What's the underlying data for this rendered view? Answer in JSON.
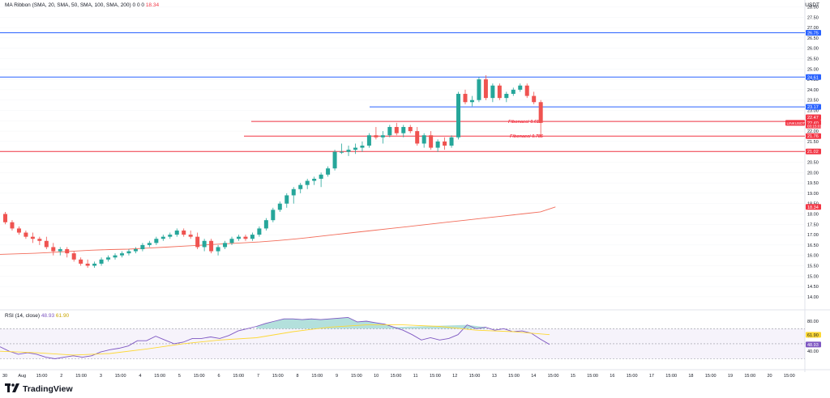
{
  "header": {
    "ma_ribbon_label": "MA Ribbon (SMA, 20, SMA, 50, SMA, 100, SMA, 200)",
    "ma_ribbon_values": "0  0  0",
    "ma_ribbon_last": "18.34",
    "currency": "USDT"
  },
  "rsi_header": {
    "label": "RSI (14, close)",
    "rsi_value": "48.93",
    "ma_value": "61.90"
  },
  "brand": {
    "name": "TradingView"
  },
  "colors": {
    "bull": "#26a69a",
    "bear": "#ef5350",
    "blue_line": "#2962ff",
    "red_line": "#f23645",
    "ma200": "#f26d5b",
    "rsi_line": "#7e57c2",
    "rsi_ma": "#fdd835"
  },
  "chart_data": {
    "type": "candlestick",
    "symbol_tag": "LINKUSDT",
    "price_axis_labels": [
      "28.00",
      "27.50",
      "27.00",
      "26.50",
      "26.00",
      "25.50",
      "25.00",
      "24.50",
      "24.00",
      "23.50",
      "23.00",
      "22.50",
      "22.00",
      "21.50",
      "21.00",
      "20.50",
      "20.00",
      "19.50",
      "19.00",
      "18.50",
      "18.00",
      "17.50",
      "17.00",
      "16.50",
      "16.00",
      "15.50",
      "15.00",
      "14.50",
      "14.00"
    ],
    "x_axis_labels": [
      "30",
      "Aug",
      "15:00",
      "2",
      "15:00",
      "3",
      "15:00",
      "4",
      "15:00",
      "5",
      "15:00",
      "6",
      "15:00",
      "7",
      "15:00",
      "8",
      "15:00",
      "9",
      "15:00",
      "10",
      "15:00",
      "11",
      "15:00",
      "12",
      "15:00",
      "13",
      "15:00",
      "14",
      "15:00",
      "15",
      "15:00",
      "16",
      "15:00",
      "17",
      "15:00",
      "18",
      "15:00",
      "19",
      "15:00",
      "20",
      "15:00"
    ],
    "horizontal_levels": [
      {
        "price": 26.75,
        "label": "26.75",
        "color": "blue"
      },
      {
        "price": 24.61,
        "label": "24.61",
        "color": "blue"
      },
      {
        "price": 23.17,
        "label": "23.17",
        "color": "blue"
      },
      {
        "price": 22.47,
        "label": "Fibonacci 0.618",
        "color": "red"
      },
      {
        "price": 21.76,
        "label": "Fibonacci 0.786",
        "color": "red"
      },
      {
        "price": 21.02,
        "label": "21.02",
        "color": "red"
      }
    ],
    "price_tags": [
      {
        "price": 26.75,
        "label": "26.75",
        "kind": "blue"
      },
      {
        "price": 24.61,
        "label": "24.61",
        "kind": "blue"
      },
      {
        "price": 23.17,
        "label": "23.17",
        "kind": "blue"
      },
      {
        "price": 22.67,
        "label": "22.47",
        "kind": "red"
      },
      {
        "price": 22.4,
        "label": "22.40",
        "kind": "red"
      },
      {
        "price": 22.25,
        "label": "03:15:01",
        "kind": "red_small"
      },
      {
        "price": 21.76,
        "label": "21.76",
        "kind": "red"
      },
      {
        "price": 21.02,
        "label": "21.02",
        "kind": "red"
      },
      {
        "price": 18.34,
        "label": "18.34",
        "kind": "red"
      }
    ],
    "candles": [
      [
        18.0,
        18.1,
        17.5,
        17.6
      ],
      [
        17.6,
        17.7,
        17.2,
        17.3
      ],
      [
        17.3,
        17.4,
        17.0,
        17.1
      ],
      [
        17.1,
        17.2,
        16.8,
        16.9
      ],
      [
        16.9,
        17.1,
        16.6,
        16.8
      ],
      [
        16.8,
        16.9,
        16.5,
        16.7
      ],
      [
        16.7,
        16.9,
        16.3,
        16.4
      ],
      [
        16.4,
        16.6,
        16.0,
        16.2
      ],
      [
        16.2,
        16.4,
        16.0,
        16.3
      ],
      [
        16.3,
        16.4,
        15.9,
        16.1
      ],
      [
        16.1,
        16.2,
        15.7,
        15.8
      ],
      [
        15.8,
        15.9,
        15.5,
        15.6
      ],
      [
        15.6,
        15.8,
        15.4,
        15.5
      ],
      [
        15.5,
        15.7,
        15.4,
        15.6
      ],
      [
        15.6,
        15.9,
        15.5,
        15.8
      ],
      [
        15.8,
        16.0,
        15.7,
        15.9
      ],
      [
        15.9,
        16.1,
        15.8,
        16.0
      ],
      [
        16.0,
        16.2,
        15.9,
        16.1
      ],
      [
        16.1,
        16.3,
        16.0,
        16.2
      ],
      [
        16.2,
        16.4,
        16.1,
        16.3
      ],
      [
        16.3,
        16.6,
        16.2,
        16.5
      ],
      [
        16.5,
        16.7,
        16.4,
        16.6
      ],
      [
        16.6,
        16.9,
        16.5,
        16.8
      ],
      [
        16.8,
        17.0,
        16.7,
        16.9
      ],
      [
        16.9,
        17.1,
        16.8,
        17.0
      ],
      [
        17.0,
        17.3,
        16.9,
        17.2
      ],
      [
        17.2,
        17.3,
        16.9,
        17.0
      ],
      [
        17.0,
        17.2,
        16.8,
        16.9
      ],
      [
        16.9,
        17.1,
        16.3,
        16.4
      ],
      [
        16.4,
        16.8,
        16.2,
        16.7
      ],
      [
        16.7,
        16.8,
        16.1,
        16.2
      ],
      [
        16.2,
        16.5,
        16.0,
        16.4
      ],
      [
        16.4,
        16.7,
        16.3,
        16.6
      ],
      [
        16.6,
        16.9,
        16.5,
        16.8
      ],
      [
        16.8,
        17.0,
        16.7,
        16.9
      ],
      [
        16.9,
        17.0,
        16.7,
        16.8
      ],
      [
        16.8,
        17.1,
        16.7,
        17.0
      ],
      [
        17.0,
        17.4,
        16.9,
        17.3
      ],
      [
        17.3,
        17.8,
        17.2,
        17.7
      ],
      [
        17.7,
        18.3,
        17.6,
        18.2
      ],
      [
        18.2,
        18.6,
        18.1,
        18.5
      ],
      [
        18.5,
        19.0,
        18.3,
        18.9
      ],
      [
        18.9,
        19.3,
        18.5,
        19.2
      ],
      [
        19.2,
        19.5,
        19.0,
        19.4
      ],
      [
        19.4,
        19.7,
        19.2,
        19.6
      ],
      [
        19.6,
        19.8,
        19.4,
        19.7
      ],
      [
        19.7,
        20.0,
        19.3,
        19.9
      ],
      [
        19.9,
        20.3,
        19.8,
        20.2
      ],
      [
        20.2,
        21.1,
        20.1,
        21.0
      ],
      [
        21.0,
        21.4,
        20.9,
        21.0
      ],
      [
        21.0,
        21.3,
        20.8,
        21.1
      ],
      [
        21.1,
        21.4,
        20.9,
        21.2
      ],
      [
        21.2,
        21.5,
        21.0,
        21.3
      ],
      [
        21.3,
        21.9,
        21.2,
        21.8
      ],
      [
        21.8,
        22.2,
        21.6,
        21.7
      ],
      [
        21.7,
        22.0,
        21.4,
        21.8
      ],
      [
        21.8,
        22.3,
        21.7,
        22.2
      ],
      [
        22.2,
        22.4,
        21.8,
        21.9
      ],
      [
        21.9,
        22.3,
        21.7,
        22.2
      ],
      [
        22.2,
        22.3,
        21.9,
        22.0
      ],
      [
        22.0,
        22.2,
        21.3,
        21.4
      ],
      [
        21.4,
        21.9,
        21.2,
        21.8
      ],
      [
        21.8,
        22.0,
        21.1,
        21.2
      ],
      [
        21.2,
        21.6,
        21.0,
        21.5
      ],
      [
        21.5,
        21.7,
        21.1,
        21.3
      ],
      [
        21.3,
        21.8,
        21.2,
        21.7
      ],
      [
        21.7,
        23.9,
        21.6,
        23.8
      ],
      [
        23.8,
        24.0,
        23.3,
        23.4
      ],
      [
        23.4,
        23.7,
        23.2,
        23.5
      ],
      [
        23.5,
        24.6,
        23.4,
        24.5
      ],
      [
        24.5,
        24.7,
        23.5,
        23.6
      ],
      [
        23.6,
        24.3,
        23.4,
        24.2
      ],
      [
        24.2,
        24.3,
        23.5,
        23.6
      ],
      [
        23.6,
        23.9,
        23.4,
        23.8
      ],
      [
        23.8,
        24.1,
        23.7,
        24.0
      ],
      [
        24.0,
        24.3,
        23.9,
        24.2
      ],
      [
        24.2,
        24.3,
        23.6,
        23.7
      ],
      [
        23.7,
        23.9,
        23.3,
        23.4
      ],
      [
        23.4,
        23.5,
        21.7,
        22.4
      ]
    ],
    "ma200": [
      [
        0,
        16.05
      ],
      [
        1,
        16.1
      ],
      [
        2,
        16.15
      ],
      [
        3,
        16.2
      ],
      [
        4,
        16.25
      ],
      [
        5,
        16.28
      ],
      [
        6,
        16.3
      ],
      [
        7,
        16.35
      ],
      [
        8,
        16.4
      ],
      [
        9,
        16.45
      ],
      [
        10,
        16.5
      ],
      [
        11,
        16.55
      ],
      [
        12,
        16.6
      ],
      [
        13,
        16.65
      ],
      [
        14,
        16.72
      ],
      [
        15,
        16.8
      ],
      [
        16,
        16.9
      ],
      [
        17,
        17.0
      ],
      [
        18,
        17.1
      ],
      [
        19,
        17.2
      ],
      [
        20,
        17.3
      ],
      [
        21,
        17.4
      ],
      [
        22,
        17.5
      ],
      [
        23,
        17.6
      ],
      [
        24,
        17.7
      ],
      [
        25,
        17.8
      ],
      [
        26,
        17.9
      ],
      [
        27,
        18.0
      ],
      [
        28,
        18.1
      ],
      [
        28.8,
        18.34
      ]
    ],
    "rsi": [
      [
        0,
        46
      ],
      [
        1,
        40
      ],
      [
        2,
        36
      ],
      [
        3,
        38
      ],
      [
        4,
        36
      ],
      [
        5,
        32
      ],
      [
        6,
        30
      ],
      [
        7,
        32
      ],
      [
        8,
        34
      ],
      [
        9,
        32
      ],
      [
        10,
        34
      ],
      [
        11,
        39
      ],
      [
        12,
        42
      ],
      [
        13,
        44
      ],
      [
        14,
        47
      ],
      [
        15,
        54
      ],
      [
        16,
        54
      ],
      [
        17,
        60
      ],
      [
        18,
        55
      ],
      [
        19,
        50
      ],
      [
        20,
        52
      ],
      [
        21,
        57
      ],
      [
        22,
        57
      ],
      [
        23,
        59
      ],
      [
        24,
        57
      ],
      [
        25,
        61
      ],
      [
        26,
        67
      ],
      [
        27,
        70
      ],
      [
        28,
        73
      ],
      [
        29,
        77
      ],
      [
        30,
        80
      ],
      [
        31,
        83
      ],
      [
        32,
        83
      ],
      [
        33,
        82
      ],
      [
        34,
        83
      ],
      [
        35,
        82
      ],
      [
        36,
        83
      ],
      [
        37,
        84
      ],
      [
        38,
        85
      ],
      [
        39,
        79
      ],
      [
        40,
        80
      ],
      [
        41,
        78
      ],
      [
        42,
        76
      ],
      [
        43,
        72
      ],
      [
        44,
        68
      ],
      [
        45,
        62
      ],
      [
        46,
        55
      ],
      [
        47,
        58
      ],
      [
        48,
        55
      ],
      [
        49,
        57
      ],
      [
        50,
        62
      ],
      [
        51,
        75
      ],
      [
        52,
        70
      ],
      [
        53,
        72
      ],
      [
        54,
        68
      ],
      [
        55,
        70
      ],
      [
        56,
        66
      ],
      [
        57,
        67
      ],
      [
        58,
        64
      ],
      [
        59,
        56
      ],
      [
        60,
        49
      ]
    ],
    "rsi_ma": [
      [
        0,
        40
      ],
      [
        4,
        38
      ],
      [
        8,
        35
      ],
      [
        12,
        37
      ],
      [
        16,
        43
      ],
      [
        20,
        50
      ],
      [
        24,
        55
      ],
      [
        28,
        58
      ],
      [
        32,
        66
      ],
      [
        36,
        72
      ],
      [
        40,
        75
      ],
      [
        44,
        75
      ],
      [
        48,
        73
      ],
      [
        52,
        68
      ],
      [
        56,
        66
      ],
      [
        60,
        62
      ]
    ],
    "rsi_levels": [
      70,
      50,
      30
    ],
    "rsi_axis_labels": [
      "80.00",
      "60.00",
      "40.00"
    ]
  }
}
